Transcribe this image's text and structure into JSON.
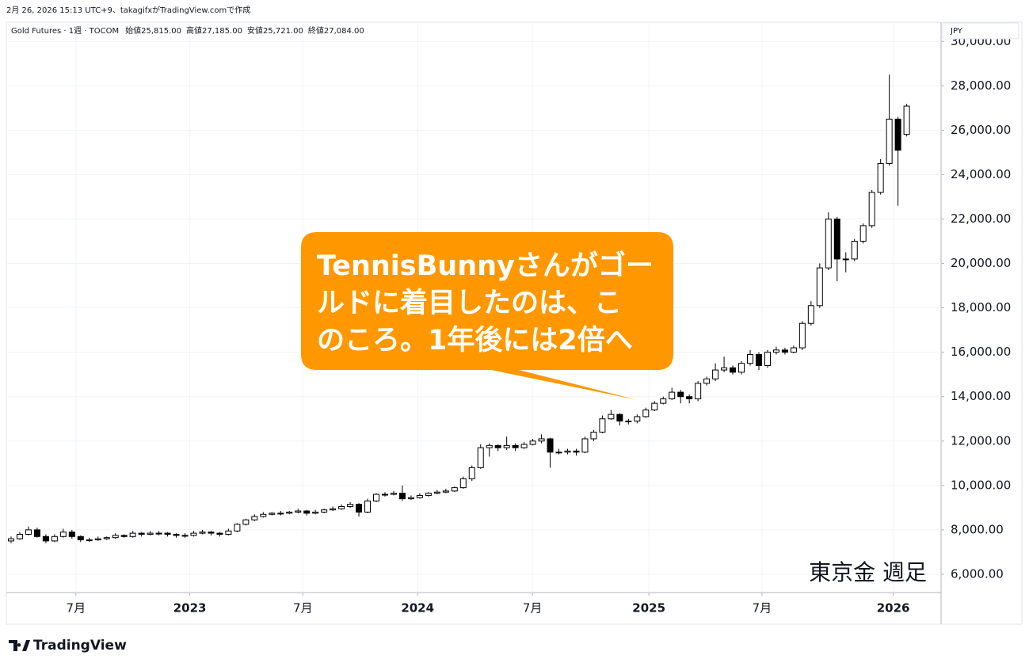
{
  "header": {
    "caption": "2月 26, 2026 15:13 UTC+9、takagifxがTradingView.comで作成",
    "legend": {
      "symbol": "Gold Futures · 1週 · TOCOM",
      "items": [
        {
          "label": "始値",
          "value": "25,815.00"
        },
        {
          "label": "高値",
          "value": "27,185.00"
        },
        {
          "label": "安値",
          "value": "25,721.00"
        },
        {
          "label": "終値",
          "value": "27,084.00"
        }
      ]
    },
    "currency": "JPY"
  },
  "chart_data": {
    "type": "candlestick",
    "open": [
      7500,
      7600,
      7800,
      8000,
      7700,
      7500,
      7700,
      7900,
      7700,
      7550,
      7550,
      7600,
      7650,
      7750,
      7700,
      7850,
      7800,
      7850,
      7850,
      7800,
      7750,
      7750,
      7850,
      7900,
      7850,
      7800,
      7950,
      8250,
      8450,
      8600,
      8700,
      8750,
      8750,
      8800,
      8850,
      8750,
      8800,
      8900,
      8950,
      9050,
      9150,
      8800,
      9300,
      9600,
      9600,
      9650,
      9400,
      9450,
      9550,
      9650,
      9700,
      9750,
      9900,
      10300,
      10800,
      11700,
      11800,
      11700,
      11800,
      11700,
      11850,
      12000,
      12100,
      11500,
      11500,
      11550,
      11500,
      12100,
      12400,
      13000,
      13200,
      12900,
      12900,
      13100,
      13400,
      13700,
      13900,
      14200,
      14000,
      13900,
      14600,
      14800,
      15200,
      15300,
      15100,
      15500,
      15900,
      15400,
      16000,
      16100,
      16000,
      16200,
      17300,
      18100,
      19800,
      22000,
      20200,
      20200,
      21000,
      21700,
      23200,
      24500,
      26500,
      25815
    ],
    "high": [
      7700,
      7900,
      8150,
      8100,
      7800,
      7800,
      8050,
      8000,
      7750,
      7650,
      7700,
      7700,
      7850,
      7800,
      7950,
      7900,
      7950,
      7950,
      7900,
      7850,
      7850,
      7950,
      8000,
      7950,
      7900,
      8050,
      8300,
      8500,
      8700,
      8800,
      8800,
      8850,
      8850,
      8950,
      8900,
      8900,
      8950,
      9050,
      9150,
      9250,
      9200,
      9400,
      9650,
      9700,
      9750,
      10000,
      9550,
      9650,
      9700,
      9800,
      9850,
      9950,
      10400,
      10900,
      11850,
      11900,
      11850,
      12200,
      11900,
      11950,
      12100,
      12300,
      12150,
      11650,
      11650,
      11650,
      12200,
      12500,
      13150,
      13400,
      13250,
      13000,
      13200,
      13500,
      13800,
      14000,
      14400,
      14300,
      14100,
      14700,
      14900,
      15500,
      15800,
      15400,
      15600,
      16100,
      16000,
      16100,
      16250,
      16200,
      16300,
      17400,
      18300,
      20000,
      22300,
      22100,
      20500,
      21100,
      21800,
      23300,
      24700,
      28500,
      26600,
      27185
    ],
    "low": [
      7400,
      7550,
      7750,
      7650,
      7400,
      7450,
      7650,
      7600,
      7450,
      7450,
      7500,
      7550,
      7600,
      7650,
      7650,
      7700,
      7750,
      7750,
      7700,
      7650,
      7650,
      7700,
      7800,
      7750,
      7700,
      7750,
      7900,
      8200,
      8400,
      8550,
      8650,
      8650,
      8700,
      8750,
      8650,
      8700,
      8750,
      8850,
      8900,
      9000,
      8600,
      8750,
      9250,
      9500,
      9550,
      9300,
      9350,
      9400,
      9500,
      9600,
      9650,
      9700,
      9850,
      10200,
      10750,
      11300,
      11550,
      11600,
      11550,
      11650,
      11800,
      11900,
      10800,
      11400,
      11400,
      11350,
      11450,
      12000,
      12350,
      12950,
      12700,
      12750,
      12800,
      13050,
      13350,
      13650,
      13850,
      13700,
      13700,
      13800,
      14500,
      14700,
      15100,
      15000,
      15000,
      15400,
      15200,
      15300,
      15900,
      15900,
      15950,
      16100,
      17200,
      18000,
      19700,
      19200,
      19600,
      20100,
      20900,
      21600,
      23100,
      24400,
      22600,
      25721
    ],
    "close": [
      7600,
      7800,
      8000,
      7700,
      7500,
      7700,
      7900,
      7700,
      7550,
      7550,
      7600,
      7650,
      7750,
      7700,
      7850,
      7800,
      7850,
      7850,
      7800,
      7750,
      7750,
      7850,
      7900,
      7850,
      7800,
      7950,
      8250,
      8450,
      8600,
      8700,
      8750,
      8750,
      8800,
      8850,
      8750,
      8800,
      8900,
      8950,
      9050,
      9150,
      8800,
      9300,
      9600,
      9600,
      9650,
      9400,
      9450,
      9550,
      9650,
      9700,
      9750,
      9900,
      10300,
      10800,
      11700,
      11800,
      11700,
      11800,
      11700,
      11850,
      12000,
      12100,
      11500,
      11500,
      11550,
      11500,
      12100,
      12400,
      13000,
      13200,
      12900,
      12900,
      13100,
      13400,
      13700,
      13900,
      14200,
      14000,
      13900,
      14600,
      14800,
      15200,
      15300,
      15100,
      15500,
      15900,
      15400,
      16000,
      16100,
      16000,
      16200,
      17300,
      18100,
      19800,
      22000,
      20200,
      20200,
      21000,
      21700,
      23200,
      24500,
      26500,
      25100,
      27084
    ],
    "up_color": "#ffffff",
    "down_color": "#000000",
    "edge_color": "#000000",
    "xlim": [
      -0.5,
      107
    ],
    "xticks": [
      {
        "value": 7.5,
        "label": "7月"
      },
      {
        "value": 20.6,
        "label": "2023"
      },
      {
        "value": 33.6,
        "label": "7月"
      },
      {
        "value": 46.8,
        "label": "2024"
      },
      {
        "value": 60,
        "label": "7月"
      },
      {
        "value": 73.4,
        "label": "2025"
      },
      {
        "value": 86.4,
        "label": "7月"
      },
      {
        "value": 101.5,
        "label": "2026"
      }
    ],
    "ylim": [
      5177,
      30866
    ],
    "yticks": [
      {
        "value": 6000,
        "label": "6,000.00"
      },
      {
        "value": 8000,
        "label": "8,000.00"
      },
      {
        "value": 10000,
        "label": "10,000.00"
      },
      {
        "value": 12000,
        "label": "12,000.00"
      },
      {
        "value": 14000,
        "label": "14,000.00"
      },
      {
        "value": 16000,
        "label": "16,000.00"
      },
      {
        "value": 18000,
        "label": "18,000.00"
      },
      {
        "value": 20000,
        "label": "20,000.00"
      },
      {
        "value": 22000,
        "label": "22,000.00"
      },
      {
        "value": 24000,
        "label": "24,000.00"
      },
      {
        "value": 26000,
        "label": "26,000.00"
      },
      {
        "value": 28000,
        "label": "28,000.00"
      },
      {
        "value": 30000,
        "label": "30,000.00"
      }
    ],
    "grid": true,
    "annotations": {
      "callout": [
        "TennisBunnyさんがゴー",
        "ルドに着目したのは、こ",
        "のころ。1年後には2倍へ"
      ],
      "callout_color": "#ff9800",
      "watermark": "東京金 週足"
    }
  },
  "footer": {
    "brand": "TradingView"
  }
}
